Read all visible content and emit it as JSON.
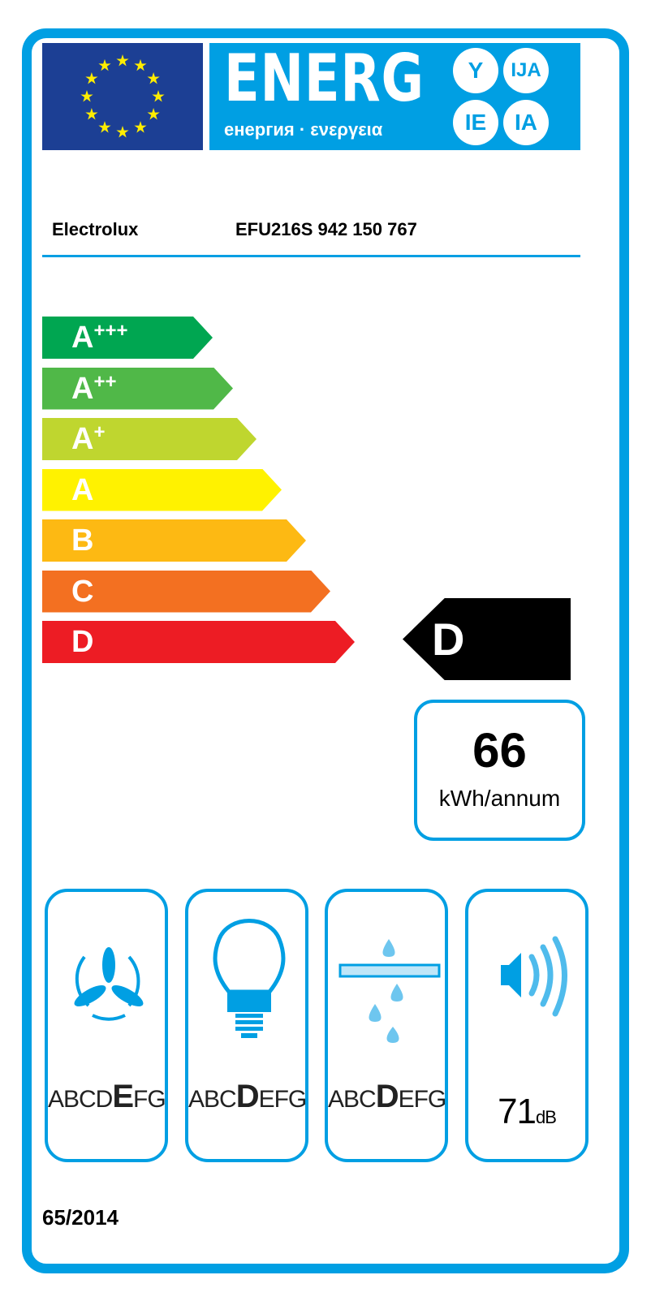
{
  "header": {
    "title": "ENERG",
    "subtitle": "енергия · ενεργεια",
    "suffixes": [
      "Y",
      "IJA",
      "IE",
      "IA"
    ]
  },
  "supplier": "Electrolux",
  "model": "EFU216S  942 150 767",
  "scale": [
    {
      "letter": "A",
      "plus": "+++",
      "color": "#00a651"
    },
    {
      "letter": "A",
      "plus": "++",
      "color": "#50b848"
    },
    {
      "letter": "A",
      "plus": "+",
      "color": "#bfd62f"
    },
    {
      "letter": "A",
      "plus": "",
      "color": "#fff200"
    },
    {
      "letter": "B",
      "plus": "",
      "color": "#fdb913"
    },
    {
      "letter": "C",
      "plus": "",
      "color": "#f37021"
    },
    {
      "letter": "D",
      "plus": "",
      "color": "#ed1c24"
    }
  ],
  "rating": "D",
  "consumption": {
    "value": "66",
    "unit": "kWh/annum"
  },
  "classes": [
    {
      "icon": "fan-icon",
      "pre": "ABCD",
      "sel": "E",
      "post": "FG"
    },
    {
      "icon": "light-bulb-icon",
      "pre": "ABC",
      "sel": "D",
      "post": "EFG"
    },
    {
      "icon": "grease-filter-icon",
      "pre": "ABC",
      "sel": "D",
      "post": "EFG"
    }
  ],
  "noise": {
    "value": "71",
    "unit": "dB",
    "icon": "speaker-icon"
  },
  "regulation": "65/2014",
  "colors": {
    "blue": "#009fe3",
    "eu_blue": "#1c3f94"
  }
}
